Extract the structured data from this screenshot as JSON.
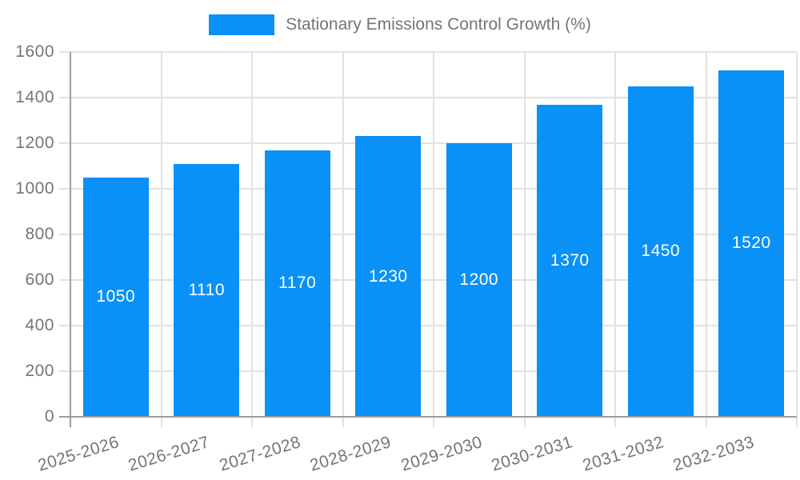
{
  "legend": {
    "label": "Stationary Emissions Control Growth (%)"
  },
  "chart_data": {
    "type": "bar",
    "title": "",
    "legend": "Stationary Emissions Control Growth (%)",
    "legend_position": "top",
    "categories": [
      "2025-2026",
      "2026-2027",
      "2027-2028",
      "2028-2029",
      "2029-2030",
      "2030-2031",
      "2031-2032",
      "2032-2033"
    ],
    "values": [
      1050,
      1110,
      1170,
      1230,
      1200,
      1370,
      1450,
      1520
    ],
    "value_labels": [
      "1050",
      "1110",
      "1170",
      "1230",
      "1200",
      "1370",
      "1450",
      "1520"
    ],
    "xlabel": "",
    "ylabel": "",
    "ylim": [
      0,
      1600
    ],
    "yticks": [
      0,
      200,
      400,
      600,
      800,
      1000,
      1200,
      1400,
      1600
    ],
    "grid": true,
    "bar_color": "#0a91f8",
    "value_label_color": "#ffffff",
    "axis_text_color": "#757575",
    "gridline_color": "#e1e1e1",
    "axis_line_color": "#9e9e9e",
    "background_color": "#ffffff"
  }
}
